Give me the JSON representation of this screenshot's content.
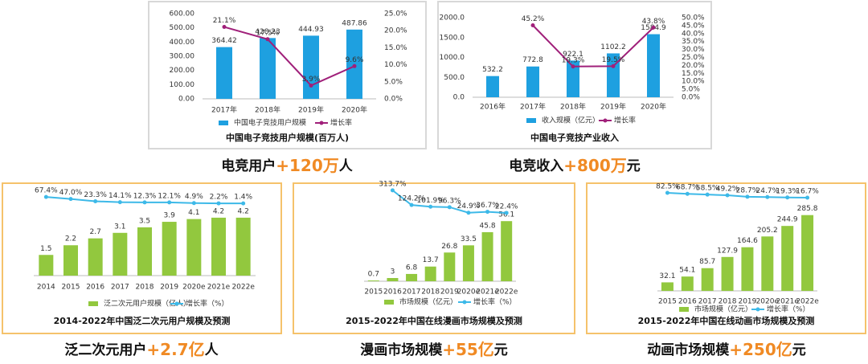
{
  "chart_data": [
    {
      "type": "bar-line",
      "title": "中国电子竞技用户规模(百万人)",
      "caption": [
        "电竞用户",
        "+120万",
        "人"
      ],
      "categories": [
        "2017年",
        "2018年",
        "2019年",
        "2020年"
      ],
      "series": [
        {
          "name": "中国电子竞技用户规模",
          "color": "#1ea0e0",
          "values": [
            364.42,
            428.23,
            444.93,
            487.86
          ]
        },
        {
          "name": "增长率",
          "color": "#a0207a",
          "axis": "y2",
          "values": [
            21.1,
            17.5,
            3.9,
            9.6
          ],
          "value_labels": [
            "21.1%",
            "17.5%",
            "3.9%",
            "9.6%"
          ]
        }
      ],
      "ylim": [
        0,
        600
      ],
      "yticks": [
        {
          "value": 0,
          "label": "0.00"
        },
        {
          "value": 100,
          "label": "100.00"
        },
        {
          "value": 200,
          "label": "200.00"
        },
        {
          "value": 300,
          "label": "300.00"
        },
        {
          "value": 400,
          "label": "400.00"
        },
        {
          "value": 500,
          "label": "500.00"
        },
        {
          "value": 600,
          "label": "600.00"
        }
      ],
      "y2lim": [
        0,
        25
      ],
      "y2ticks": [
        {
          "value": 0,
          "label": "0.0%"
        },
        {
          "value": 5,
          "label": "5.0%"
        },
        {
          "value": 10,
          "label": "10.0%"
        },
        {
          "value": 15,
          "label": "15.0%"
        },
        {
          "value": 20,
          "label": "20.0%"
        },
        {
          "value": 25,
          "label": "25.0%"
        }
      ]
    },
    {
      "type": "bar-line",
      "title": "中国电子竞技产业收入",
      "caption": [
        "电竞收入",
        "+800万",
        "元"
      ],
      "categories": [
        "2016年",
        "2017年",
        "2018年",
        "2019年",
        "2020年"
      ],
      "series": [
        {
          "name": "收入规模（亿元）",
          "color": "#1ea0e0",
          "values": [
            532.2,
            772.8,
            922.1,
            1102.2,
            1584.9
          ]
        },
        {
          "name": "增长率",
          "color": "#a0207a",
          "axis": "y2",
          "values": [
            null,
            45.2,
            19.3,
            19.5,
            43.8
          ],
          "value_labels": [
            null,
            "45.2%",
            "19.3%",
            "19.5%",
            "43.8%"
          ]
        }
      ],
      "ylim": [
        0,
        2000
      ],
      "yticks": [
        {
          "value": 0,
          "label": "0.0"
        },
        {
          "value": 500,
          "label": "500.0"
        },
        {
          "value": 1000,
          "label": "1000.0"
        },
        {
          "value": 1500,
          "label": "1500.0"
        },
        {
          "value": 2000,
          "label": "2000.0"
        }
      ],
      "y2lim": [
        0,
        50
      ],
      "y2ticks": [
        {
          "value": 0,
          "label": "0.0%"
        },
        {
          "value": 5,
          "label": "5.0%"
        },
        {
          "value": 10,
          "label": "10.0%"
        },
        {
          "value": 15,
          "label": "15.0%"
        },
        {
          "value": 20,
          "label": "20.0%"
        },
        {
          "value": 25,
          "label": "25.0%"
        },
        {
          "value": 30,
          "label": "30.0%"
        },
        {
          "value": 35,
          "label": "35.0%"
        },
        {
          "value": 40,
          "label": "40.0%"
        },
        {
          "value": 45,
          "label": "45.0%"
        },
        {
          "value": 50,
          "label": "50.0%"
        }
      ]
    },
    {
      "type": "bar-line",
      "title": "2014-2022年中国泛二次元用户规模及预测",
      "caption": [
        "泛二次元用户",
        "+2.7亿",
        "人"
      ],
      "categories": [
        "2014",
        "2015",
        "2016",
        "2017",
        "2018",
        "2019",
        "2020e",
        "2021e",
        "2022e"
      ],
      "series": [
        {
          "name": "泛二次元用户规模（亿人）",
          "color": "#92c83e",
          "values": [
            1.5,
            2.2,
            2.7,
            3.1,
            3.5,
            3.9,
            4.1,
            4.2,
            4.2
          ]
        },
        {
          "name": "增长率（%）",
          "color": "#3db9e8",
          "axis": "y2",
          "values": [
            67.4,
            47.0,
            23.3,
            14.1,
            12.3,
            12.1,
            4.9,
            2.2,
            1.4
          ],
          "value_labels": [
            "67.4%",
            "47.0%",
            "23.3%",
            "14.1%",
            "12.3%",
            "12.1%",
            "4.9%",
            "2.2%",
            "1.4%"
          ]
        }
      ],
      "ylim": [
        0,
        6
      ],
      "y2lim": [
        -740,
        110
      ]
    },
    {
      "type": "bar-line",
      "title": "2015-2022年中国在线漫画市场规模及预测",
      "caption": [
        "漫画市场规模",
        "+55亿",
        "元"
      ],
      "categories": [
        "2015",
        "2016",
        "2017",
        "2018",
        "2019",
        "2020e",
        "2021e",
        "2022e"
      ],
      "series": [
        {
          "name": "市场规模（亿元）",
          "color": "#92c83e",
          "values": [
            0.7,
            3.0,
            6.8,
            13.7,
            26.8,
            33.5,
            45.8,
            56.1
          ]
        },
        {
          "name": "增长率（%）",
          "color": "#3db9e8",
          "axis": "y2",
          "values": [
            null,
            313.7,
            124.2,
            101.9,
            96.3,
            24.9,
            36.7,
            22.4
          ],
          "value_labels": [
            null,
            "313.7%",
            "124.2%",
            "101.9%",
            "96.3%",
            "24.9%",
            "36.7%",
            "22.4%"
          ]
        }
      ],
      "ylim": [
        0,
        90
      ],
      "y2lim": [
        -860,
        385
      ]
    },
    {
      "type": "bar-line",
      "title": "2015-2022年中国在线动画市场规模及预测",
      "caption": [
        "动画市场规模",
        "+250亿",
        "元"
      ],
      "categories": [
        "2015",
        "2016",
        "2017",
        "2018",
        "2019",
        "2020e",
        "2021e",
        "2022e"
      ],
      "series": [
        {
          "name": "市场规模（亿元）",
          "color": "#92c83e",
          "values": [
            32.1,
            54.1,
            85.7,
            127.9,
            164.6,
            205.2,
            244.9,
            285.8
          ]
        },
        {
          "name": "增长率（%）",
          "color": "#3db9e8",
          "axis": "y2",
          "values": [
            82.5,
            68.7,
            58.5,
            49.2,
            28.7,
            24.7,
            19.3,
            16.7
          ],
          "value_labels": [
            "82.5%",
            "68.7%",
            "58.5%",
            "49.2%",
            "28.7%",
            "24.7%",
            "19.3%",
            "16.7%"
          ]
        }
      ],
      "ylim": [
        0,
        400
      ],
      "y2lim": [
        -1255,
        192
      ]
    }
  ]
}
